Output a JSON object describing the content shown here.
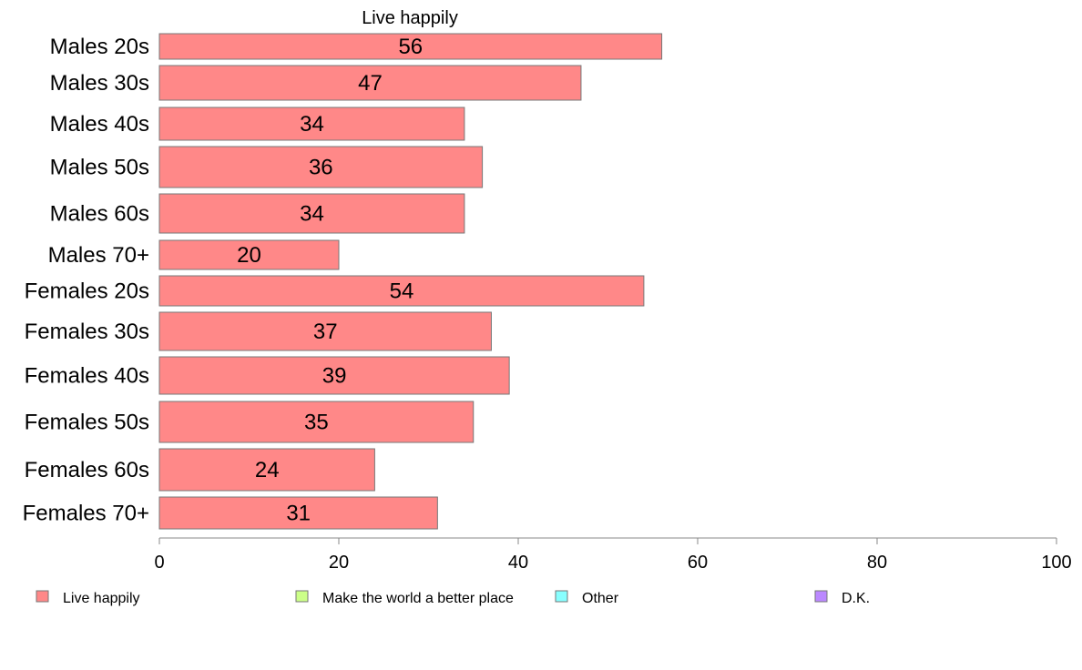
{
  "chart_data": {
    "type": "bar",
    "orientation": "horizontal",
    "title": "Live happily",
    "categories": [
      "Males 20s",
      "Males 30s",
      "Males 40s",
      "Males 50s",
      "Males 60s",
      "Males 70+",
      "Females 20s",
      "Females 30s",
      "Females 40s",
      "Females 50s",
      "Females 60s",
      "Females 70+"
    ],
    "series": [
      {
        "name": "Live happily",
        "color": "#ff8888",
        "values": [
          56,
          47,
          34,
          36,
          34,
          20,
          54,
          37,
          39,
          35,
          24,
          31
        ]
      }
    ],
    "data_labels": [
      "56",
      "47",
      "34",
      "36",
      "34",
      "20",
      "54",
      "37",
      "39",
      "35",
      "24",
      "31"
    ],
    "xlim": [
      0,
      100
    ],
    "xticks": [
      0,
      20,
      40,
      60,
      80,
      100
    ],
    "xtick_labels": [
      "0",
      "20",
      "40",
      "60",
      "80",
      "100"
    ],
    "grid": false,
    "legend": {
      "placement": "bottom",
      "entries": [
        {
          "label": "Live happily",
          "color": "#ff8888"
        },
        {
          "label": "Make the world a better place",
          "color": "#ccff88"
        },
        {
          "label": "Other",
          "color": "#88ffff"
        },
        {
          "label": "D.K.",
          "color": "#bb88ff"
        }
      ]
    }
  }
}
